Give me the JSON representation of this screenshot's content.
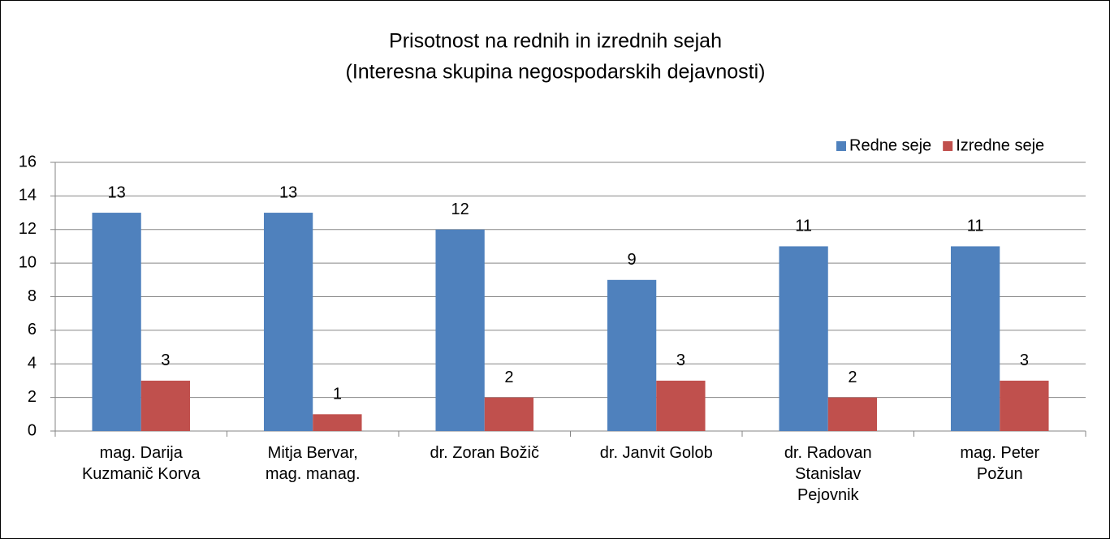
{
  "chart_data": {
    "type": "bar",
    "title": "Prisotnost na rednih in izrednih sejah",
    "subtitle": "(Interesna skupina negospodarskih dejavnosti)",
    "categories": [
      "mag. Darija\nKuzmanič Korva",
      "Mitja Bervar,\nmag. manag.",
      "dr. Zoran Božič",
      "dr. Janvit Golob",
      "dr. Radovan\nStanislav\nPejovnik",
      "mag. Peter\nPožun"
    ],
    "series": [
      {
        "name": "Redne seje",
        "color": "#4f81bd",
        "values": [
          13,
          13,
          12,
          9,
          11,
          11
        ]
      },
      {
        "name": "Izredne seje",
        "color": "#c0504d",
        "values": [
          3,
          1,
          2,
          3,
          2,
          3
        ]
      }
    ],
    "ylim": [
      0,
      16
    ],
    "yticks": [
      0,
      2,
      4,
      6,
      8,
      10,
      12,
      14,
      16
    ],
    "grid": true,
    "legend": "top-right",
    "data_labels": true
  }
}
